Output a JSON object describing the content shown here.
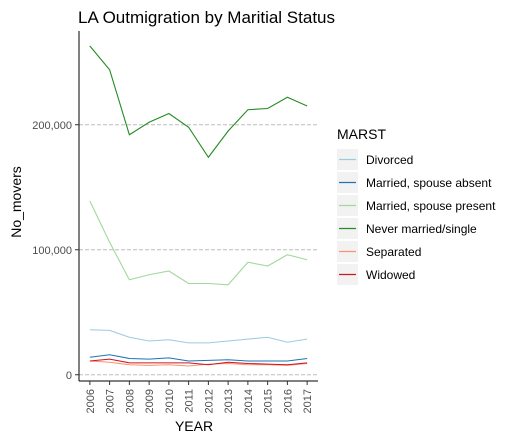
{
  "chart_data": {
    "type": "line",
    "title": "LA Outmigration by Maritial Status",
    "xlabel": "YEAR",
    "ylabel": "No_movers",
    "x": [
      2006,
      2007,
      2008,
      2009,
      2010,
      2011,
      2012,
      2013,
      2014,
      2015,
      2016,
      2017
    ],
    "x_tick_labels": [
      "2006",
      "2007",
      "2008",
      "2009",
      "2010",
      "2011",
      "2012",
      "2013",
      "2014",
      "2015",
      "2016",
      "2017"
    ],
    "ylim": [
      -5000,
      275000
    ],
    "y_ticks": [
      0,
      100000,
      200000
    ],
    "y_tick_labels": [
      "0",
      "100,000",
      "200,000"
    ],
    "grid": "horizontal major, dashed",
    "legend": {
      "title": "MARST",
      "placement": "right"
    },
    "series": [
      {
        "name": "Divorced",
        "color": "#9ecae1",
        "values": [
          36000,
          35500,
          30000,
          27000,
          28000,
          25500,
          25500,
          27000,
          28500,
          30000,
          26000,
          28500
        ]
      },
      {
        "name": "Married, spouse absent",
        "color": "#2171b5",
        "values": [
          14000,
          16000,
          13000,
          12500,
          13500,
          11000,
          11500,
          12000,
          11000,
          11000,
          11000,
          13000
        ]
      },
      {
        "name": "Married, spouse present",
        "color": "#a1d99b",
        "values": [
          139000,
          106000,
          76000,
          80000,
          83000,
          73000,
          73000,
          72000,
          90000,
          87000,
          96000,
          92000
        ]
      },
      {
        "name": "Never married/single",
        "color": "#238b22",
        "values": [
          263000,
          244000,
          192000,
          202000,
          209000,
          198000,
          174000,
          195000,
          212000,
          213000,
          222000,
          215000
        ]
      },
      {
        "name": "Separated",
        "color": "#fc9272",
        "values": [
          11000,
          10000,
          8000,
          7500,
          8000,
          7000,
          8500,
          9000,
          8000,
          8000,
          7500,
          9000
        ]
      },
      {
        "name": "Widowed",
        "color": "#cb181d",
        "values": [
          11000,
          12500,
          9500,
          9500,
          9500,
          9500,
          8000,
          10000,
          9000,
          8500,
          8000,
          9500
        ]
      }
    ]
  }
}
